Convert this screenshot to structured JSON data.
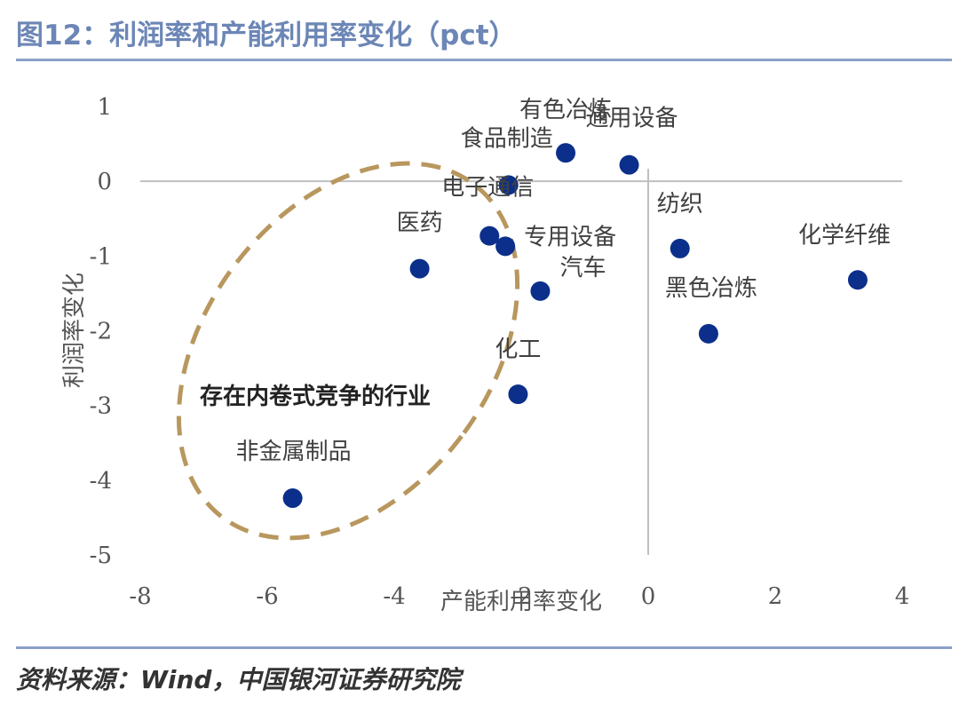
{
  "header": {
    "title": "图12：利润率和产能利用率变化（pct）"
  },
  "footer": {
    "source": "资料来源：Wind，中国银河证券研究院"
  },
  "colors": {
    "accent": "#6c86b6",
    "point": "#0b2f8a",
    "ellipse": "#b8975e"
  },
  "chart_data": {
    "type": "scatter",
    "title": "",
    "xlabel": "产能利用率变化",
    "ylabel": "利润率变化",
    "xlim": [
      -8,
      4
    ],
    "ylim": [
      -5,
      1
    ],
    "xticks": [
      -8,
      -6,
      -4,
      -2,
      0,
      2,
      4
    ],
    "yticks": [
      1,
      0,
      -1,
      -2,
      -3,
      -4,
      -5
    ],
    "grid": false,
    "points": [
      {
        "name": "有色冶炼",
        "x": -1.3,
        "y": 0.38
      },
      {
        "name": "通用设备",
        "x": -0.3,
        "y": 0.22
      },
      {
        "name": "食品制造",
        "x": -2.2,
        "y": -0.05
      },
      {
        "name": "电子通信",
        "x": -2.5,
        "y": -0.73
      },
      {
        "name": "专用设备",
        "x": -2.25,
        "y": -0.87
      },
      {
        "name": "医药",
        "x": -3.6,
        "y": -1.17
      },
      {
        "name": "汽车",
        "x": -1.7,
        "y": -1.47
      },
      {
        "name": "纺织",
        "x": 0.5,
        "y": -0.9
      },
      {
        "name": "黑色冶炼",
        "x": 0.95,
        "y": -2.04
      },
      {
        "name": "化学纤维",
        "x": 3.3,
        "y": -1.32
      },
      {
        "name": "化工",
        "x": -2.05,
        "y": -2.85
      },
      {
        "name": "非金属制品",
        "x": -5.6,
        "y": -4.24
      }
    ],
    "annotation": "存在内卷式竞争的行业"
  }
}
